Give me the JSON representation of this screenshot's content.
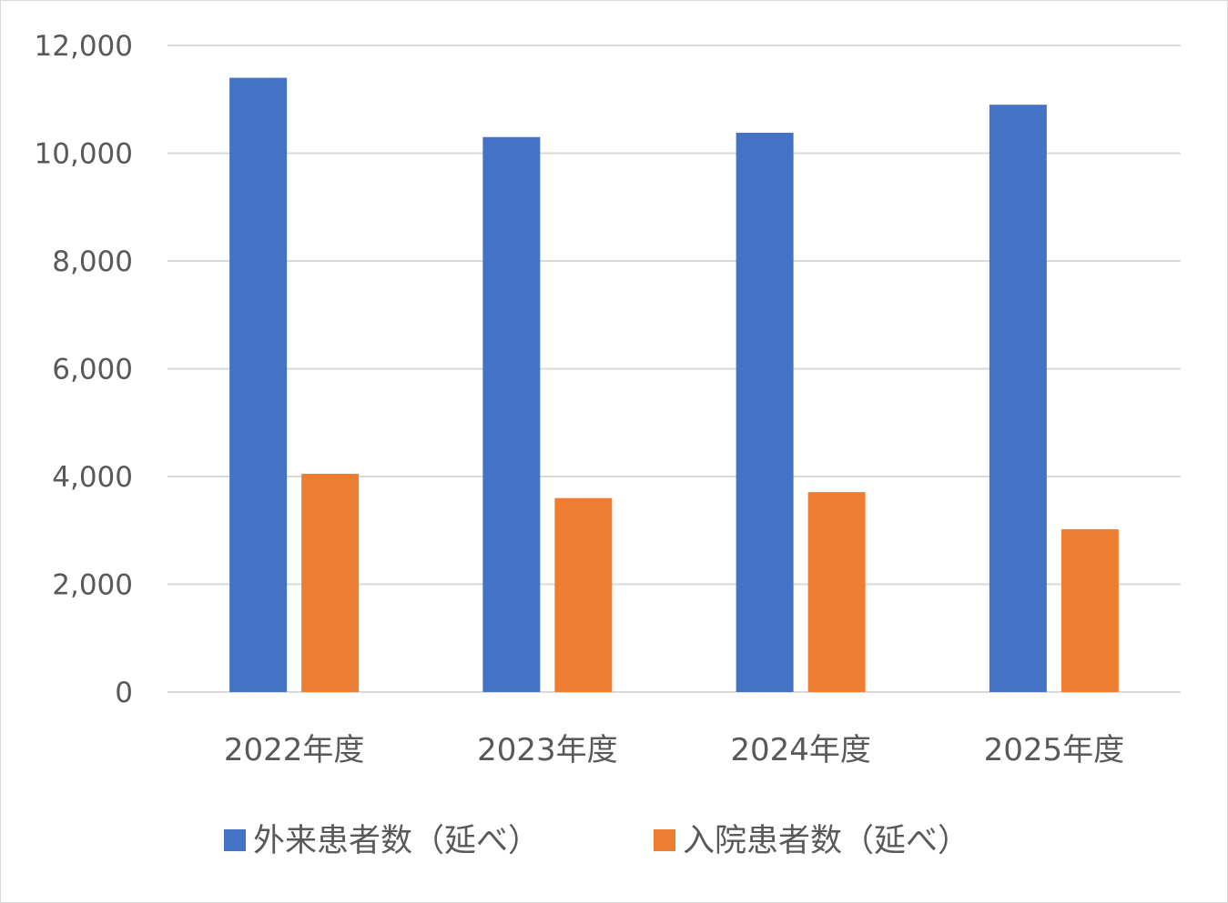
{
  "chart_data": {
    "type": "bar",
    "categories": [
      "2022年度",
      "2023年度",
      "2024年度",
      "2025年度"
    ],
    "series": [
      {
        "name": "外来患者数（延べ）",
        "values": [
          11400,
          10300,
          10380,
          10900
        ],
        "color": "#4472C4"
      },
      {
        "name": "入院患者数（延べ）",
        "values": [
          4050,
          3600,
          3710,
          3020
        ],
        "color": "#ED7D31"
      }
    ],
    "ylim": [
      0,
      12000
    ],
    "yticks": [
      0,
      2000,
      4000,
      6000,
      8000,
      10000,
      12000
    ],
    "ytick_labels": [
      "0",
      "2,000",
      "4,000",
      "6,000",
      "8,000",
      "10,000",
      "12,000"
    ],
    "grid": true,
    "legend_position": "bottom",
    "title": "",
    "xlabel": "",
    "ylabel": ""
  }
}
